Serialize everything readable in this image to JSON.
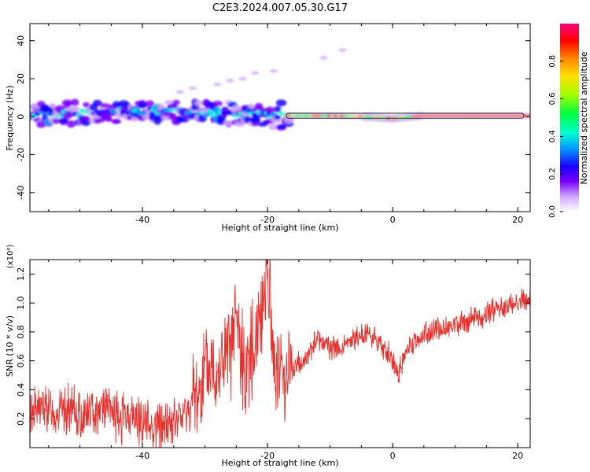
{
  "title": "C2E3.2024.007.05.30.G17",
  "chart_data": [
    {
      "type": "heatmap",
      "title": "C2E3.2024.007.05.30.G17",
      "xlabel": "Height of straight line (km)",
      "ylabel": "Frequency (Hz)",
      "xlim": [
        -58,
        22
      ],
      "ylim": [
        -50,
        49
      ],
      "xticks": [
        -40,
        -20,
        0,
        20
      ],
      "yticks": [
        -40,
        -20,
        0,
        20,
        40
      ],
      "colorbar": {
        "label": "Normalized spectral amplitude",
        "range": [
          0,
          1
        ],
        "ticks": [
          "0.0",
          "0.2",
          "0.4",
          "0.6",
          "0.8"
        ],
        "colormap": [
          "#ffffff",
          "#cfa6ff",
          "#7a00ff",
          "#1a00ff",
          "#00a0ff",
          "#00ffd0",
          "#00ff40",
          "#a0ff00",
          "#ffe000",
          "#ff8000",
          "#ff0000",
          "#ff0080"
        ]
      },
      "ridge": {
        "description_series": "dominant frequency line",
        "points": [
          [
            -58,
            1
          ],
          [
            -50,
            2
          ],
          [
            -42,
            3
          ],
          [
            -35,
            3
          ],
          [
            -28,
            2
          ],
          [
            -22,
            1
          ],
          [
            -17,
            0.5
          ],
          [
            -10,
            0.5
          ],
          [
            -5,
            0
          ],
          [
            0,
            -1
          ],
          [
            5,
            0.5
          ],
          [
            10,
            0.5
          ],
          [
            15,
            0.5
          ],
          [
            21,
            0.5
          ]
        ]
      },
      "scattered_points": [
        [
          -34,
          13
        ],
        [
          -32,
          15
        ],
        [
          -28,
          17
        ],
        [
          -26,
          19
        ],
        [
          -24,
          20
        ],
        [
          -22,
          23
        ],
        [
          -19,
          24
        ],
        [
          -11,
          31
        ],
        [
          -8,
          35
        ]
      ]
    },
    {
      "type": "line",
      "xlabel": "Height of straight line (km)",
      "ylabel": "SNR (10 * v/v)",
      "multiplier": "(x10⁴)",
      "xlim": [
        -58,
        22
      ],
      "ylim": [
        0.0,
        1.3
      ],
      "xticks": [
        -40,
        -20,
        0,
        20
      ],
      "yticks": [
        "0.2",
        "0.4",
        "0.6",
        "0.8",
        "1.0",
        "1.2"
      ],
      "color": "#e8302c",
      "series": [
        {
          "x": [
            -58,
            -56,
            -54,
            -52,
            -50,
            -48,
            -46,
            -44,
            -42,
            -40,
            -38,
            -36,
            -34,
            -32,
            -30,
            -28,
            -26,
            -25,
            -24,
            -22,
            -21,
            -20,
            -19,
            -18,
            -16,
            -14,
            -12,
            -10,
            -8,
            -6,
            -4,
            -2,
            0,
            1,
            2,
            4,
            6,
            8,
            10,
            12,
            14,
            16,
            18,
            20,
            22
          ],
          "y": [
            0.25,
            0.28,
            0.24,
            0.26,
            0.22,
            0.25,
            0.3,
            0.2,
            0.22,
            0.18,
            0.15,
            0.16,
            0.2,
            0.3,
            0.5,
            0.55,
            0.65,
            0.9,
            0.55,
            0.7,
            1.0,
            1.25,
            0.6,
            0.5,
            0.55,
            0.6,
            0.75,
            0.7,
            0.68,
            0.75,
            0.8,
            0.72,
            0.6,
            0.5,
            0.65,
            0.75,
            0.8,
            0.82,
            0.85,
            0.88,
            0.9,
            0.95,
            0.97,
            1.0,
            1.02
          ]
        }
      ]
    }
  ]
}
